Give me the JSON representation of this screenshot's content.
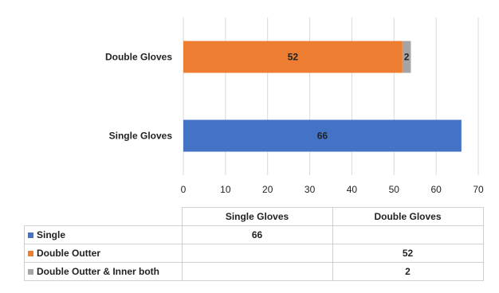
{
  "chart_data": {
    "type": "bar",
    "orientation": "horizontal",
    "stacked": true,
    "categories": [
      "Double Gloves",
      "Single Gloves"
    ],
    "series": [
      {
        "name": "Single",
        "color": "#4472c4",
        "values": [
          null,
          66
        ]
      },
      {
        "name": "Double Outter",
        "color": "#ed7d31",
        "values": [
          52,
          null
        ]
      },
      {
        "name": "Double Outter & Inner both",
        "color": "#a5a5a5",
        "values": [
          2,
          null
        ]
      }
    ],
    "xlim": [
      0,
      70
    ],
    "xticks": [
      "0",
      "10",
      "20",
      "30",
      "40",
      "50",
      "60",
      "70"
    ],
    "grid": true,
    "legend": "data-table",
    "data_table": {
      "columns": [
        "Single Gloves",
        "Double Gloves"
      ],
      "rows": [
        {
          "label": "Single",
          "cells": [
            "66",
            ""
          ]
        },
        {
          "label": "Double Outter",
          "cells": [
            "",
            "52"
          ]
        },
        {
          "label": "Double Outter & Inner both",
          "cells": [
            "",
            "2"
          ]
        }
      ]
    }
  }
}
